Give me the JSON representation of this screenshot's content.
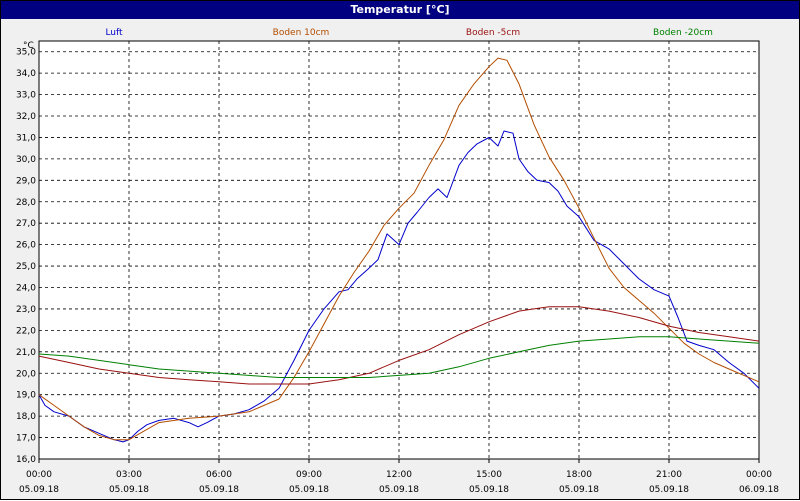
{
  "window": {
    "title": "Temperatur [°C]"
  },
  "chart_data": {
    "type": "line",
    "title": "Temperatur [°C]",
    "ylabel": "°C",
    "ylim": [
      16.0,
      35.5
    ],
    "xlim": [
      0,
      24
    ],
    "grid": true,
    "legend_position": "top",
    "yticks": [
      "16,0",
      "17,0",
      "18,0",
      "19,0",
      "20,0",
      "21,0",
      "22,0",
      "23,0",
      "24,0",
      "25,0",
      "26,0",
      "27,0",
      "28,0",
      "29,0",
      "30,0",
      "31,0",
      "32,0",
      "33,0",
      "34,0",
      "35,0"
    ],
    "xticks": [
      {
        "x": 0,
        "time": "00:00",
        "date": "05.09.18"
      },
      {
        "x": 3,
        "time": "03:00",
        "date": "05.09.18"
      },
      {
        "x": 6,
        "time": "06:00",
        "date": "05.09.18"
      },
      {
        "x": 9,
        "time": "09:00",
        "date": "05.09.18"
      },
      {
        "x": 12,
        "time": "12:00",
        "date": "05.09.18"
      },
      {
        "x": 15,
        "time": "15:00",
        "date": "05.09.18"
      },
      {
        "x": 18,
        "time": "18:00",
        "date": "05.09.18"
      },
      {
        "x": 21,
        "time": "21:00",
        "date": "05.09.18"
      },
      {
        "x": 24,
        "time": "00:00",
        "date": "06.09.18"
      }
    ],
    "series": [
      {
        "name": "Luft",
        "color": "#0000cc",
        "x": [
          0,
          0.2,
          0.5,
          1,
          1.5,
          2,
          2.5,
          2.8,
          3,
          3.3,
          3.6,
          4,
          4.5,
          5,
          5.3,
          5.6,
          6,
          6.5,
          7,
          7.5,
          8,
          8.5,
          9,
          9.5,
          10,
          10.3,
          10.6,
          11,
          11.3,
          11.6,
          12,
          12.3,
          12.6,
          13,
          13.3,
          13.6,
          14,
          14.3,
          14.6,
          15,
          15.3,
          15.5,
          15.8,
          16,
          16.3,
          16.6,
          17,
          17.3,
          17.6,
          18,
          18.5,
          19,
          19.5,
          20,
          20.5,
          21,
          21.3,
          21.6,
          22,
          22.5,
          23,
          23.5,
          24
        ],
        "y": [
          19.0,
          18.5,
          18.2,
          18.0,
          17.5,
          17.2,
          16.9,
          16.8,
          16.9,
          17.3,
          17.6,
          17.8,
          17.9,
          17.7,
          17.5,
          17.7,
          18.0,
          18.1,
          18.3,
          18.7,
          19.3,
          20.6,
          22.0,
          23.0,
          23.8,
          23.9,
          24.4,
          24.9,
          25.3,
          26.5,
          26.0,
          27.0,
          27.5,
          28.2,
          28.6,
          28.2,
          29.7,
          30.3,
          30.7,
          31.0,
          30.6,
          31.3,
          31.2,
          30.0,
          29.4,
          29.0,
          28.9,
          28.5,
          27.8,
          27.3,
          26.2,
          25.8,
          25.1,
          24.4,
          23.9,
          23.6,
          22.6,
          21.5,
          21.3,
          21.1,
          20.5,
          20.0,
          19.3
        ]
      },
      {
        "name": "Boden 10cm",
        "color": "#b34d00",
        "x": [
          0,
          0.5,
          1,
          1.5,
          2,
          2.5,
          3,
          3.5,
          4,
          5,
          6,
          7,
          8,
          8.5,
          9,
          9.5,
          10,
          10.5,
          11,
          11.5,
          12,
          12.5,
          13,
          13.5,
          14,
          14.5,
          15,
          15.3,
          15.6,
          16,
          16.5,
          17,
          17.5,
          18,
          18.5,
          19,
          19.5,
          20,
          20.5,
          21,
          21.5,
          22,
          22.5,
          23,
          23.5,
          24
        ],
        "y": [
          19.0,
          18.5,
          18.0,
          17.5,
          17.1,
          16.9,
          16.9,
          17.3,
          17.7,
          17.9,
          18.0,
          18.2,
          18.8,
          19.8,
          21.0,
          22.3,
          23.6,
          24.7,
          25.7,
          26.9,
          27.7,
          28.4,
          29.7,
          30.9,
          32.5,
          33.5,
          34.3,
          34.7,
          34.6,
          33.5,
          31.6,
          30.1,
          29.0,
          27.7,
          26.3,
          24.9,
          24.0,
          23.4,
          22.8,
          22.1,
          21.4,
          20.9,
          20.5,
          20.2,
          19.9,
          19.6
        ]
      },
      {
        "name": "Boden -5cm",
        "color": "#991111",
        "x": [
          0,
          1,
          2,
          3,
          4,
          5,
          6,
          7,
          8,
          9,
          10,
          11,
          12,
          13,
          14,
          15,
          16,
          16.5,
          17,
          18,
          19,
          20,
          21,
          22,
          23,
          24
        ],
        "y": [
          20.8,
          20.5,
          20.2,
          20.0,
          19.8,
          19.7,
          19.6,
          19.5,
          19.5,
          19.5,
          19.7,
          20.0,
          20.6,
          21.1,
          21.8,
          22.4,
          22.9,
          23.0,
          23.1,
          23.1,
          22.9,
          22.6,
          22.2,
          21.9,
          21.7,
          21.5
        ]
      },
      {
        "name": "Boden -20cm",
        "color": "#008000",
        "x": [
          0,
          1,
          2,
          3,
          4,
          5,
          6,
          7,
          8,
          9,
          10,
          11,
          12,
          13,
          14,
          15,
          16,
          17,
          18,
          19,
          20,
          21,
          22,
          23,
          24
        ],
        "y": [
          20.9,
          20.8,
          20.6,
          20.4,
          20.2,
          20.1,
          20.0,
          19.9,
          19.8,
          19.8,
          19.8,
          19.8,
          19.9,
          20.0,
          20.3,
          20.7,
          21.0,
          21.3,
          21.5,
          21.6,
          21.7,
          21.7,
          21.6,
          21.5,
          21.4
        ]
      }
    ]
  }
}
